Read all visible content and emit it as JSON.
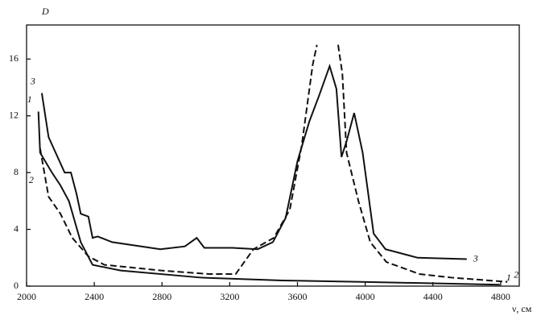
{
  "chart_data": {
    "type": "line",
    "y_label": "D",
    "x_label": "ν, см",
    "xlim": [
      2000,
      4910
    ],
    "ylim": [
      0,
      18.4
    ],
    "xticks": [
      2000,
      2400,
      2800,
      3200,
      3600,
      4000,
      4400,
      4800
    ],
    "yticks": [
      0,
      4,
      8,
      12,
      16
    ],
    "color": "#111111",
    "series": [
      {
        "name": "1",
        "dashed": false,
        "x": [
          2070,
          2080,
          2150,
          2200,
          2250,
          2320,
          2390,
          2555,
          3030,
          3510,
          3980,
          4795
        ],
        "values": [
          12.3,
          9.4,
          8,
          7.1,
          6,
          3.1,
          1.5,
          1.1,
          0.6,
          0.4,
          0.3,
          0.1
        ]
      },
      {
        "name": "2",
        "dashed": true,
        "x": [
          2080,
          2130,
          2200,
          2270,
          2365,
          2460,
          2795,
          3080,
          3235,
          3340,
          3460,
          3555,
          3625,
          3690,
          3715,
          3780,
          3840,
          3865,
          3890,
          3960,
          4030,
          4125,
          4320,
          4510,
          4840
        ],
        "values": [
          9.7,
          6.3,
          5.1,
          3.4,
          2.1,
          1.5,
          1.1,
          0.85,
          0.85,
          2.6,
          3.4,
          5.4,
          9.9,
          15.6,
          17,
          null,
          17,
          15,
          9.4,
          6,
          3.1,
          1.7,
          0.85,
          0.6,
          0.3
        ]
      },
      {
        "name": "3",
        "dashed": false,
        "x": [
          2090,
          2130,
          2225,
          2262,
          2295,
          2320,
          2365,
          2390,
          2420,
          2505,
          2790,
          2935,
          3005,
          3050,
          3215,
          3365,
          3455,
          3530,
          3600,
          3670,
          3727,
          3790,
          3830,
          3860,
          3890,
          3935,
          3985,
          4050,
          4120,
          4310,
          4600
        ],
        "values": [
          13.6,
          10.5,
          8,
          8,
          6.5,
          5.1,
          4.9,
          3.4,
          3.5,
          3.1,
          2.6,
          2.8,
          3.4,
          2.7,
          2.7,
          2.6,
          3.1,
          4.8,
          8.8,
          11.6,
          13.4,
          15.5,
          13.9,
          9.1,
          10.2,
          12.2,
          9.4,
          3.7,
          2.6,
          2.0,
          1.9
        ]
      }
    ]
  }
}
